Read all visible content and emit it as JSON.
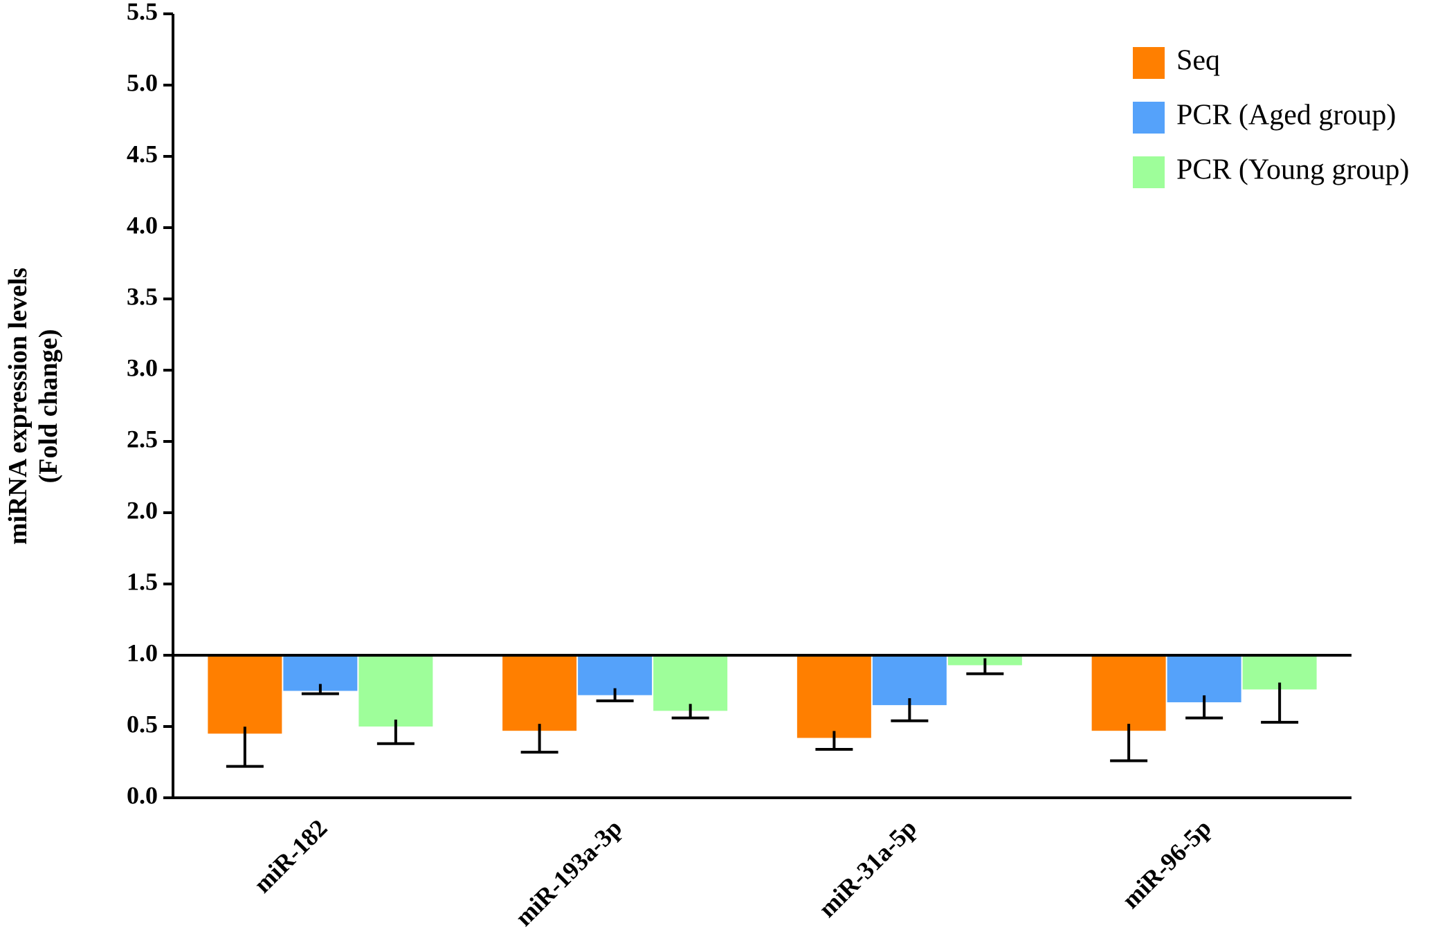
{
  "chart_data": {
    "type": "bar",
    "y_label": [
      "miRNA expression levels",
      "(Fold change)"
    ],
    "categories": [
      "miR-182",
      "miR-193a-3p",
      "miR-31a-5p",
      "miR-96-5p"
    ],
    "bar_base": 1,
    "series": [
      {
        "name": "Seq",
        "color": "#ff7f00",
        "values": [
          0.45,
          0.47,
          0.42,
          0.47
        ],
        "errors": [
          0.23,
          0.15,
          0.08,
          0.21
        ]
      },
      {
        "name": "PCR (Aged group)",
        "color": "#55a2fa",
        "values": [
          0.75,
          0.72,
          0.65,
          0.67
        ],
        "errors": [
          0.02,
          0.04,
          0.11,
          0.11
        ]
      },
      {
        "name": "PCR (Young group)",
        "color": "#9efe9a",
        "values": [
          0.5,
          0.61,
          0.93,
          0.76
        ],
        "errors": [
          0.12,
          0.05,
          0.06,
          0.23
        ]
      }
    ],
    "ylim": [
      0,
      5.5
    ],
    "yticks": [
      {
        "value": 0,
        "label": "0.0"
      },
      0.5,
      {
        "value": 1,
        "label": "1.0"
      },
      1.5,
      {
        "value": 2,
        "label": "2.0"
      },
      2.5,
      {
        "value": 3,
        "label": "3.0"
      },
      3.5,
      {
        "value": 4,
        "label": "4.0"
      },
      4.5,
      {
        "value": 5,
        "label": "5.0"
      },
      5.5
    ],
    "legend": "upper right"
  }
}
